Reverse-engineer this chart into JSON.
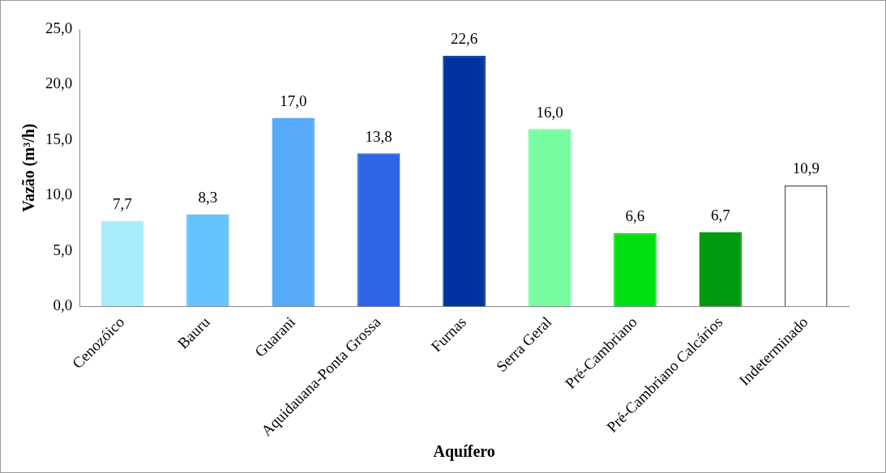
{
  "chart_data": {
    "type": "bar",
    "xlabel": "Aquífero",
    "ylabel": "Vazão (m³/h)",
    "categories": [
      "Cenozóico",
      "Bauru",
      "Guarani",
      "Aquidauana-Ponta Grossa",
      "Furnas",
      "Serra Geral",
      "Pré-Cambriano",
      "Pré-Cambriano Calcários",
      "Indeterminado"
    ],
    "values": [
      7.7,
      8.3,
      17.0,
      13.8,
      22.6,
      16.0,
      6.6,
      6.7,
      10.9
    ],
    "colors": [
      "#a6ecfb",
      "#66c4fc",
      "#57aaf8",
      "#2e64e6",
      "#0032a0",
      "#77fca0",
      "#00e010",
      "#009a10",
      "#ffffff"
    ],
    "value_labels": [
      "7,7",
      "8,3",
      "17,0",
      "13,8",
      "22,6",
      "16,0",
      "6,6",
      "6,7",
      "10,9"
    ],
    "ylim": [
      0,
      25
    ],
    "yticks": [
      {
        "value": 0,
        "label": "0,0"
      },
      {
        "value": 5,
        "label": "5,0"
      },
      {
        "value": 10,
        "label": "10,0"
      },
      {
        "value": 15,
        "label": "15,0"
      },
      {
        "value": 20,
        "label": "20,0"
      },
      {
        "value": 25,
        "label": "25,0"
      }
    ],
    "grid": false,
    "legend": false
  }
}
